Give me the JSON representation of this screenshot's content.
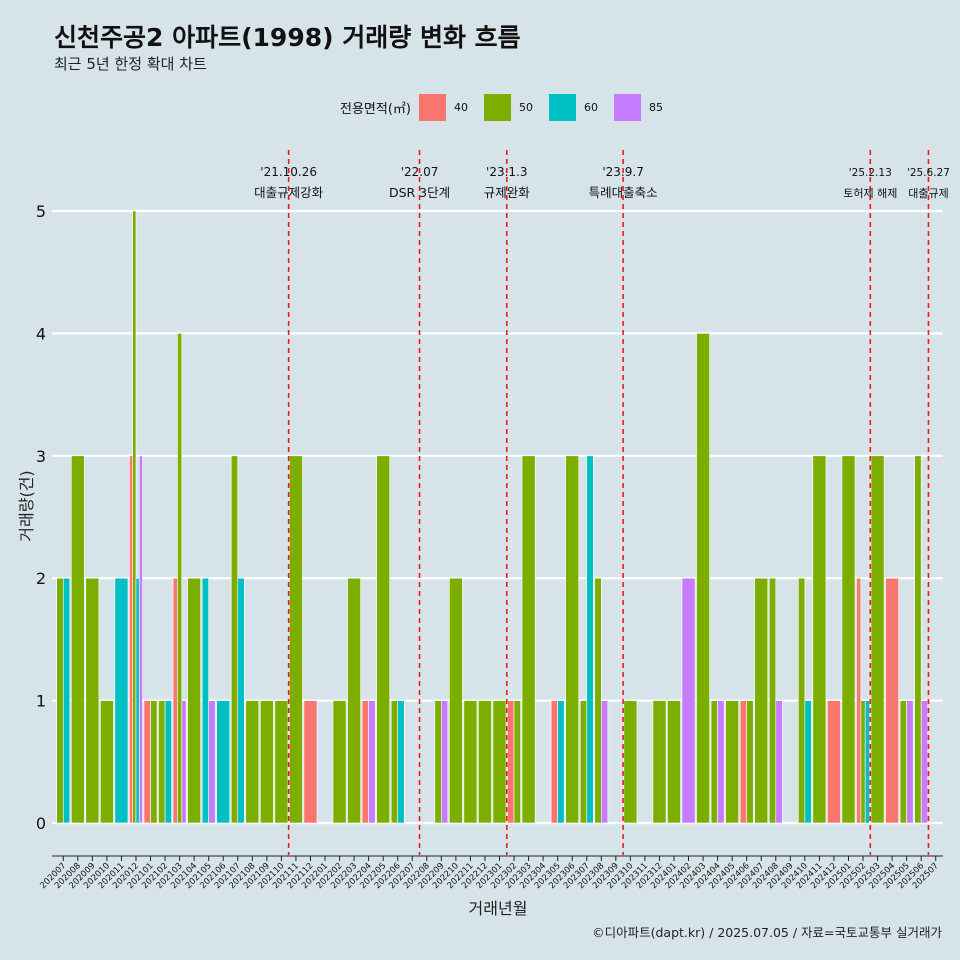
{
  "title": "신천주공2 아파트(1998) 거래량 변화 흐름",
  "subtitle": "최근 5년 한정 확대 차트",
  "caption": "©디아파트(dapt.kr) / 2025.07.05 / 자료=국토교통부 실거래가",
  "legend": {
    "title": "전용면적(㎡)",
    "items": [
      {
        "label": "40",
        "color": "#F8766D"
      },
      {
        "label": "50",
        "color": "#7CAE00"
      },
      {
        "label": "60",
        "color": "#00BFC4"
      },
      {
        "label": "85",
        "color": "#C77CFF"
      }
    ]
  },
  "chart_data": {
    "type": "bar",
    "xlabel": "거래년월",
    "ylabel": "거래량(건)",
    "ylim": [
      0,
      5
    ],
    "yticks": [
      0,
      1,
      2,
      3,
      4,
      5
    ],
    "grid": true,
    "legend_position": "top",
    "categories": [
      "202007",
      "202008",
      "202009",
      "202010",
      "202011",
      "202012",
      "202101",
      "202102",
      "202103",
      "202104",
      "202105",
      "202106",
      "202107",
      "202108",
      "202109",
      "202110",
      "202111",
      "202112",
      "202201",
      "202202",
      "202203",
      "202204",
      "202205",
      "202206",
      "202207",
      "202208",
      "202209",
      "202210",
      "202211",
      "202212",
      "202301",
      "202302",
      "202303",
      "202304",
      "202305",
      "202306",
      "202307",
      "202308",
      "202309",
      "202310",
      "202311",
      "202312",
      "202401",
      "202402",
      "202403",
      "202404",
      "202405",
      "202406",
      "202407",
      "202408",
      "202409",
      "202410",
      "202411",
      "202412",
      "202501",
      "202502",
      "202503",
      "202504",
      "202505",
      "202506",
      "202507"
    ],
    "series": [
      {
        "name": "40",
        "values": [
          0,
          0,
          0,
          0,
          0,
          3,
          1,
          0,
          2,
          0,
          0,
          0,
          0,
          0,
          0,
          0,
          0,
          1,
          0,
          0,
          0,
          1,
          0,
          0,
          0,
          0,
          0,
          0,
          0,
          0,
          0,
          1,
          0,
          0,
          1,
          0,
          0,
          0,
          0,
          0,
          0,
          0,
          0,
          0,
          0,
          0,
          0,
          1,
          0,
          0,
          0,
          0,
          0,
          1,
          0,
          2,
          0,
          2,
          0,
          0,
          0
        ]
      },
      {
        "name": "50",
        "values": [
          2,
          3,
          2,
          1,
          0,
          5,
          1,
          1,
          4,
          2,
          0,
          0,
          3,
          1,
          1,
          1,
          3,
          0,
          0,
          1,
          2,
          0,
          3,
          1,
          0,
          0,
          1,
          2,
          1,
          1,
          1,
          1,
          3,
          0,
          0,
          3,
          1,
          2,
          0,
          1,
          0,
          1,
          1,
          0,
          4,
          1,
          1,
          1,
          2,
          2,
          0,
          2,
          3,
          0,
          3,
          1,
          3,
          0,
          1,
          3,
          0
        ]
      },
      {
        "name": "60",
        "values": [
          2,
          0,
          0,
          0,
          2,
          2,
          0,
          1,
          0,
          0,
          2,
          1,
          2,
          0,
          0,
          0,
          0,
          0,
          0,
          0,
          0,
          0,
          0,
          1,
          0,
          0,
          0,
          0,
          0,
          0,
          0,
          0,
          0,
          0,
          1,
          0,
          3,
          0,
          0,
          0,
          0,
          0,
          0,
          0,
          0,
          0,
          0,
          0,
          0,
          0,
          0,
          1,
          0,
          0,
          0,
          1,
          0,
          0,
          0,
          0,
          0
        ]
      },
      {
        "name": "85",
        "values": [
          0,
          0,
          0,
          0,
          0,
          3,
          0,
          0,
          1,
          0,
          1,
          0,
          0,
          0,
          0,
          0,
          0,
          0,
          0,
          0,
          0,
          1,
          0,
          0,
          0,
          0,
          1,
          0,
          0,
          0,
          0,
          0,
          0,
          0,
          0,
          0,
          0,
          1,
          0,
          0,
          0,
          0,
          0,
          2,
          0,
          1,
          0,
          0,
          0,
          1,
          0,
          0,
          0,
          0,
          0,
          0,
          0,
          0,
          1,
          1,
          0
        ]
      }
    ],
    "annotations": [
      {
        "x": "202110",
        "date": "'21.10.26",
        "text": "대출규제강화"
      },
      {
        "x": "202207",
        "date": "'22.07",
        "text": "DSR 3단계"
      },
      {
        "x": "202301",
        "date": "'23.1.3",
        "text": "규제완화"
      },
      {
        "x": "202309",
        "date": "'23.9.7",
        "text": "특례대출축소"
      },
      {
        "x": "202502",
        "date": "'25.2.13",
        "text": "토허제 해제"
      },
      {
        "x": "202506",
        "date": "'25.6.27",
        "text": "대출규제"
      }
    ]
  }
}
